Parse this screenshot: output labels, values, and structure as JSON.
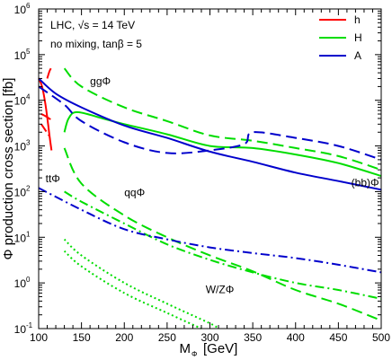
{
  "chart_data": {
    "type": "line",
    "xlabel": "M",
    "xlabel_sub": "Φ",
    "xlabel_unit": "[GeV]",
    "ylabel": "Φ production cross section [fb]",
    "xlim": [
      100,
      500
    ],
    "ylim": [
      0.1,
      1000000
    ],
    "yscale": "log",
    "x_ticks": [
      "100",
      "150",
      "200",
      "250",
      "300",
      "350",
      "400",
      "450",
      "500"
    ],
    "y_ticks": [
      {
        "base": "10",
        "exp": "-1",
        "value": 0.1
      },
      {
        "base": "10",
        "exp": "0",
        "value": 1
      },
      {
        "base": "10",
        "exp": "1",
        "value": 10
      },
      {
        "base": "10",
        "exp": "2",
        "value": 100
      },
      {
        "base": "10",
        "exp": "3",
        "value": 1000
      },
      {
        "base": "10",
        "exp": "4",
        "value": 10000
      },
      {
        "base": "10",
        "exp": "5",
        "value": 100000
      },
      {
        "base": "10",
        "exp": "6",
        "value": 1000000
      }
    ],
    "header_lines": [
      "LHC, √s = 14 TeV",
      "no mixing, tanβ = 5"
    ],
    "legend": [
      {
        "label": "h",
        "color": "#ff0000"
      },
      {
        "label": "H",
        "color": "#00dd00"
      },
      {
        "label": "A",
        "color": "#0000cc"
      }
    ],
    "legend_position": "top-right",
    "annotations": [
      {
        "text": "ggΦ",
        "x": 160,
        "y": 22000
      },
      {
        "text": "ttΦ",
        "x": 108,
        "y": 160
      },
      {
        "text": "qqΦ",
        "x": 200,
        "y": 80
      },
      {
        "text": "(bb)Φ",
        "x": 465,
        "y": 130
      },
      {
        "text": "W/ZΦ",
        "x": 295,
        "y": 0.6
      }
    ],
    "series": [
      {
        "process": "ggΦ",
        "higgs": "h",
        "color": "#ff0000",
        "dash": "dashed",
        "points": [
          [
            110,
            30000
          ],
          [
            113,
            45000
          ],
          [
            116,
            55000
          ]
        ]
      },
      {
        "process": "(bb)Φ",
        "higgs": "h",
        "color": "#ff0000",
        "dash": "solid",
        "points": [
          [
            100,
            30000
          ],
          [
            104,
            20000
          ],
          [
            108,
            8000
          ],
          [
            111,
            3000
          ],
          [
            113,
            1500
          ],
          [
            115,
            800
          ]
        ]
      },
      {
        "process": "ttΦ",
        "higgs": "h",
        "color": "#ff0000",
        "dash": "dashdot",
        "points": [
          [
            103,
            3000
          ],
          [
            108,
            2200
          ],
          [
            114,
            1500
          ]
        ]
      },
      {
        "process": "qqΦ",
        "higgs": "h",
        "color": "#ff0000",
        "dash": "dashed",
        "points": [
          [
            103,
            5000
          ],
          [
            108,
            4500
          ],
          [
            114,
            3800
          ]
        ]
      },
      {
        "process": "ggΦ",
        "higgs": "H",
        "color": "#00dd00",
        "dash": "dashed",
        "points": [
          [
            130,
            50000
          ],
          [
            150,
            20000
          ],
          [
            200,
            7000
          ],
          [
            250,
            3500
          ],
          [
            300,
            1700
          ],
          [
            350,
            1300
          ],
          [
            400,
            900
          ],
          [
            450,
            600
          ],
          [
            500,
            300
          ]
        ]
      },
      {
        "process": "(bb)Φ",
        "higgs": "H",
        "color": "#00dd00",
        "dash": "solid",
        "points": [
          [
            130,
            2000
          ],
          [
            135,
            4000
          ],
          [
            145,
            5500
          ],
          [
            175,
            4000
          ],
          [
            200,
            3000
          ],
          [
            250,
            1800
          ],
          [
            300,
            1000
          ],
          [
            350,
            900
          ],
          [
            400,
            650
          ],
          [
            450,
            420
          ],
          [
            500,
            220
          ]
        ]
      },
      {
        "process": "qqΦ",
        "higgs": "H",
        "color": "#00dd00",
        "dash": "dashed",
        "points": [
          [
            130,
            900
          ],
          [
            150,
            150
          ],
          [
            200,
            30
          ],
          [
            250,
            10
          ],
          [
            300,
            4
          ],
          [
            350,
            1.8
          ],
          [
            400,
            0.7
          ],
          [
            450,
            0.35
          ],
          [
            500,
            0.15
          ]
        ]
      },
      {
        "process": "ttΦ",
        "higgs": "H",
        "color": "#00dd00",
        "dash": "dashdot",
        "points": [
          [
            130,
            100
          ],
          [
            150,
            60
          ],
          [
            200,
            20
          ],
          [
            250,
            7
          ],
          [
            300,
            3.2
          ],
          [
            350,
            1.7
          ],
          [
            400,
            1.0
          ],
          [
            450,
            0.7
          ],
          [
            500,
            0.45
          ]
        ]
      },
      {
        "process": "W/ZΦ",
        "higgs": "H",
        "color": "#00dd00",
        "dash": "dotted",
        "points": [
          [
            130,
            9
          ],
          [
            150,
            4
          ],
          [
            200,
            1.0
          ],
          [
            250,
            0.35
          ],
          [
            300,
            0.13
          ],
          [
            310,
            0.1
          ]
        ]
      },
      {
        "process": "W/ZΦ",
        "higgs": "H",
        "color": "#00dd00",
        "dash": "dotted",
        "points": [
          [
            130,
            5
          ],
          [
            150,
            2.3
          ],
          [
            200,
            0.6
          ],
          [
            250,
            0.22
          ],
          [
            290,
            0.1
          ]
        ]
      },
      {
        "process": "ggΦ",
        "higgs": "A",
        "color": "#0000cc",
        "dash": "dashed",
        "points": [
          [
            100,
            20000
          ],
          [
            130,
            8000
          ],
          [
            150,
            3500
          ],
          [
            200,
            1200
          ],
          [
            250,
            700
          ],
          [
            300,
            800
          ],
          [
            340,
            1100
          ],
          [
            350,
            2000
          ],
          [
            400,
            1500
          ],
          [
            450,
            1000
          ],
          [
            500,
            500
          ]
        ]
      },
      {
        "process": "(bb)Φ",
        "higgs": "A",
        "color": "#0000cc",
        "dash": "solid",
        "points": [
          [
            100,
            30000
          ],
          [
            120,
            14000
          ],
          [
            150,
            7000
          ],
          [
            200,
            2800
          ],
          [
            250,
            1500
          ],
          [
            300,
            750
          ],
          [
            350,
            450
          ],
          [
            400,
            260
          ],
          [
            450,
            170
          ],
          [
            500,
            110
          ]
        ]
      },
      {
        "process": "ttΦ",
        "higgs": "A",
        "color": "#0000cc",
        "dash": "dashdot",
        "points": [
          [
            100,
            120
          ],
          [
            150,
            40
          ],
          [
            200,
            15
          ],
          [
            250,
            9
          ],
          [
            300,
            6
          ],
          [
            350,
            4.5
          ],
          [
            400,
            3.5
          ],
          [
            450,
            2.5
          ],
          [
            500,
            1.7
          ]
        ]
      }
    ]
  }
}
